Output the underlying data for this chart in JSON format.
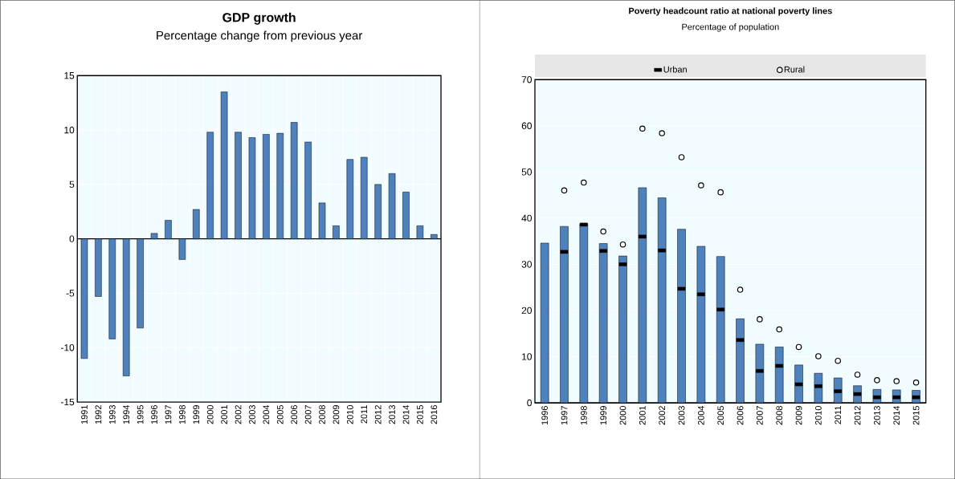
{
  "chart_data": [
    {
      "type": "bar",
      "title": "GDP growth",
      "subtitle": "Percentage change from previous year",
      "categories": [
        "1991",
        "1992",
        "1993",
        "1994",
        "1995",
        "1996",
        "1997",
        "1998",
        "1999",
        "2000",
        "2001",
        "2002",
        "2003",
        "2004",
        "2005",
        "2006",
        "2007",
        "2008",
        "2009",
        "2010",
        "2011",
        "2012",
        "2013",
        "2014",
        "2015",
        "2016"
      ],
      "values": [
        -11.0,
        -5.3,
        -9.2,
        -12.6,
        -8.2,
        0.5,
        1.7,
        -1.9,
        2.7,
        9.8,
        13.5,
        9.8,
        9.3,
        9.6,
        9.7,
        10.7,
        8.9,
        3.3,
        1.2,
        7.3,
        7.5,
        5.0,
        6.0,
        4.3,
        1.2,
        0.4
      ],
      "color": "#4f81bd",
      "ylim": [
        -15,
        15
      ],
      "yticks": [
        -15,
        -10,
        -5,
        0,
        5,
        10,
        15
      ],
      "grid": true
    },
    {
      "type": "bar",
      "title": "Poverty headcount ratio at national poverty lines",
      "subtitle": "Percentage of population",
      "categories": [
        "1996",
        "1997",
        "1998",
        "1999",
        "2000",
        "2001",
        "2002",
        "2003",
        "2004",
        "2005",
        "2006",
        "2007",
        "2008",
        "2009",
        "2010",
        "2011",
        "2012",
        "2013",
        "2014",
        "2015"
      ],
      "series": [
        {
          "type": "bar",
          "color": "#4f81bd",
          "values": [
            34.6,
            38.2,
            38.8,
            34.5,
            31.8,
            46.6,
            44.4,
            37.6,
            33.9,
            31.7,
            18.2,
            12.7,
            12.1,
            8.2,
            6.4,
            5.4,
            3.7,
            2.9,
            2.8,
            2.7
          ]
        },
        {
          "type": "scatter",
          "name": "Urban",
          "marker": "square",
          "color": "#000000",
          "values": [
            null,
            32.7,
            38.6,
            32.9,
            30.0,
            36.0,
            33.0,
            24.7,
            23.5,
            20.2,
            13.6,
            6.9,
            8.0,
            4.0,
            3.6,
            2.5,
            1.9,
            1.2,
            1.2,
            1.2
          ]
        },
        {
          "type": "scatter",
          "name": "Rural",
          "marker": "circle",
          "color": "#000000",
          "values": [
            null,
            46.0,
            47.7,
            37.1,
            34.3,
            59.4,
            58.4,
            53.2,
            47.1,
            45.6,
            24.5,
            18.1,
            15.9,
            12.1,
            10.1,
            9.1,
            6.1,
            4.9,
            4.7,
            4.4
          ]
        }
      ],
      "ylim": [
        0,
        70
      ],
      "yticks": [
        0,
        10,
        20,
        30,
        40,
        50,
        60,
        70
      ],
      "grid": "y",
      "legend": "top"
    }
  ]
}
